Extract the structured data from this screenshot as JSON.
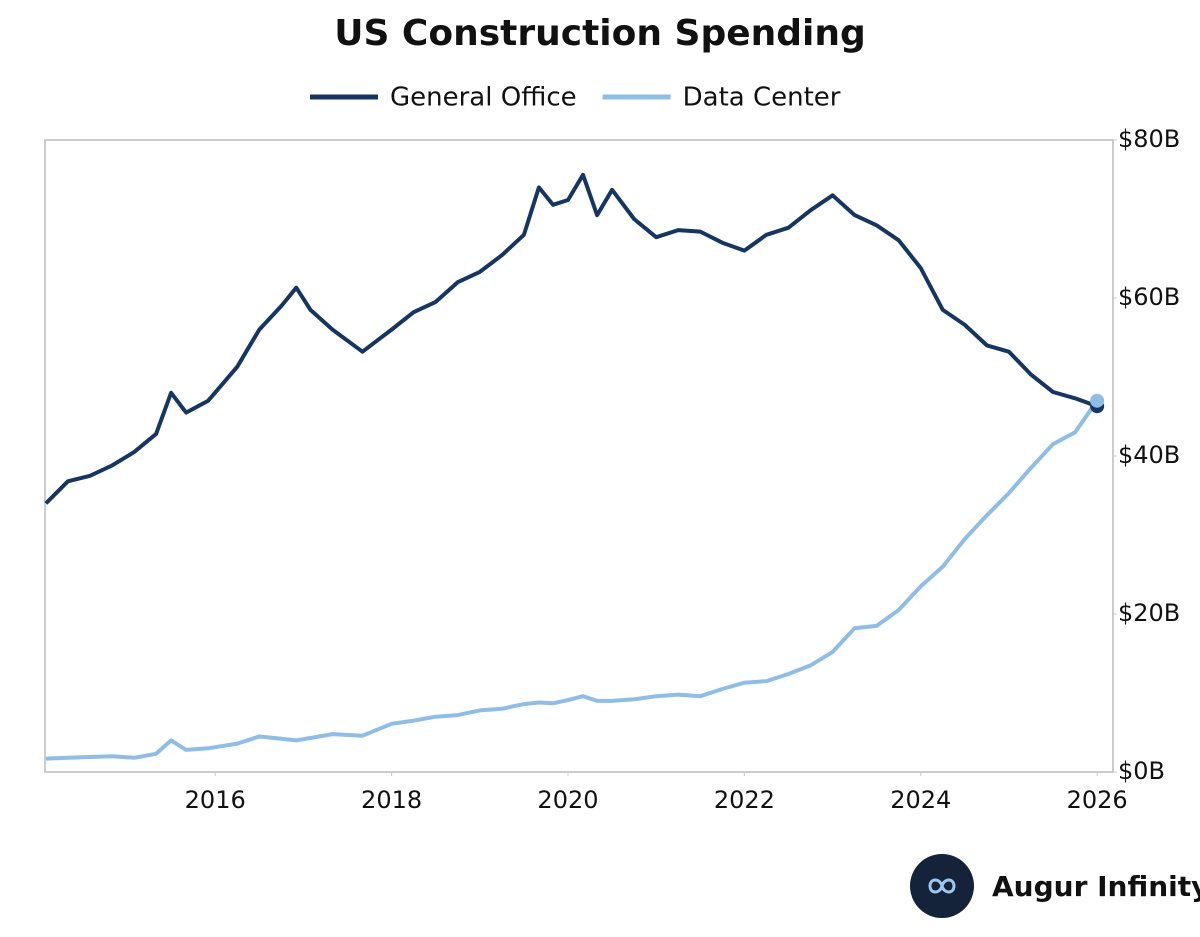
{
  "chart_data": {
    "type": "line",
    "title": "US Construction Spending",
    "x": [
      2014.08,
      2014.33,
      2014.58,
      2014.83,
      2015.08,
      2015.33,
      2015.5,
      2015.67,
      2015.92,
      2016.25,
      2016.5,
      2016.75,
      2016.92,
      2017.08,
      2017.33,
      2017.67,
      2018.0,
      2018.25,
      2018.5,
      2018.75,
      2019.0,
      2019.25,
      2019.5,
      2019.67,
      2019.83,
      2020.0,
      2020.17,
      2020.33,
      2020.5,
      2020.75,
      2021.0,
      2021.25,
      2021.5,
      2021.75,
      2022.0,
      2022.25,
      2022.5,
      2022.75,
      2023.0,
      2023.25,
      2023.5,
      2023.75,
      2024.0,
      2024.25,
      2024.5,
      2024.75,
      2025.0,
      2025.25,
      2025.5,
      2025.75,
      2026.0
    ],
    "series": [
      {
        "name": "General Office",
        "color": "#16365f",
        "values": [
          34,
          36.8,
          37.5,
          38.8,
          40.5,
          42.8,
          48,
          45.5,
          47,
          51.3,
          56,
          59,
          61.3,
          58.5,
          56,
          53.2,
          56,
          58.2,
          59.5,
          62,
          63.3,
          65.4,
          68,
          74,
          71.8,
          72.4,
          75.6,
          70.5,
          73.7,
          70,
          67.7,
          68.6,
          68.4,
          67,
          66,
          68,
          68.9,
          71.1,
          73,
          70.5,
          69.2,
          67.3,
          63.8,
          58.5,
          56.6,
          54,
          53.2,
          50.3,
          48.1,
          47.3,
          46.3
        ]
      },
      {
        "name": "Data Center",
        "color": "#8fbde6",
        "values": [
          1.7,
          1.8,
          1.9,
          2.0,
          1.8,
          2.3,
          4.0,
          2.8,
          3.0,
          3.6,
          4.5,
          4.2,
          4.0,
          4.3,
          4.8,
          4.6,
          6.1,
          6.5,
          7.0,
          7.2,
          7.8,
          8.0,
          8.6,
          8.8,
          8.7,
          9.1,
          9.6,
          9.0,
          9.0,
          9.2,
          9.6,
          9.8,
          9.6,
          10.5,
          11.3,
          11.5,
          12.4,
          13.5,
          15.2,
          18.2,
          18.5,
          20.5,
          23.5,
          26,
          29.5,
          32.5,
          35.3,
          38.5,
          41.5,
          43,
          47
        ]
      }
    ],
    "xlim": [
      2014.07,
      2026.18
    ],
    "xticks": [
      2016,
      2018,
      2020,
      2022,
      2024,
      2026
    ],
    "ylim": [
      0,
      80
    ],
    "yticks": [
      {
        "value": 0,
        "label": "$0B"
      },
      {
        "value": 20,
        "label": "$20B"
      },
      {
        "value": 40,
        "label": "$40B"
      },
      {
        "value": 60,
        "label": "$60B"
      },
      {
        "value": 80,
        "label": "$80B"
      }
    ],
    "grid": false,
    "legend": "top"
  },
  "branding": "Augur Infinity"
}
